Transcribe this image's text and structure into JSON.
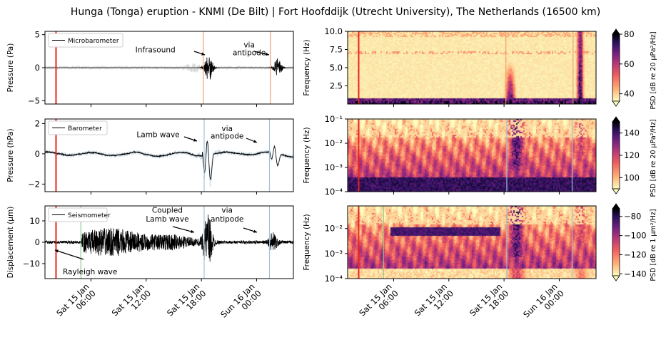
{
  "title": "Hunga (Tonga) eruption - KNMI (De Bilt) | Fort Hoofddijk (Utrecht University), The Netherlands (16500 km)",
  "colors": {
    "eruption_line": "#e8241f",
    "wave_line": "#9fc2da",
    "infrasound_line": "#f0a070",
    "rayleigh_line": "#8fc98f",
    "trace": "#000000",
    "trace_filtered": "#cfdde8",
    "microbaro_noise": "#d6d6d6",
    "colormap": [
      "#fcfdbf",
      "#feb078",
      "#f1605d",
      "#b73779",
      "#721f81",
      "#2c115f",
      "#000004"
    ]
  },
  "time_axis": {
    "ticks": [
      {
        "line1": "Sat 15 Jan",
        "line2": "06:00"
      },
      {
        "line1": "Sat 15 Jan",
        "line2": "12:00"
      },
      {
        "line1": "Sat 15 Jan",
        "line2": "18:00"
      },
      {
        "line1": "Sun 16 Jan",
        "line2": "00:00"
      }
    ],
    "range_hours": [
      1.0,
      28.0
    ],
    "tick_hours": [
      6,
      12,
      18,
      24
    ]
  },
  "chart_data": [
    {
      "type": "line",
      "panel": "microbarometer-timeseries",
      "ylabel": "Pressure (Pa)",
      "ylim": [
        -5.5,
        5.5
      ],
      "yticks": [
        "5",
        "0",
        "−5"
      ],
      "ytick_values": [
        5,
        0,
        -5
      ],
      "legend": "Microbarometer",
      "series": [
        {
          "name": "Microbarometer",
          "noise_amp": 0.25,
          "events": [
            {
              "hour": 18.8,
              "amp": 2.0
            },
            {
              "hour": 26.3,
              "amp": 1.4
            }
          ]
        }
      ],
      "vlines": [
        {
          "hour": 2.2,
          "kind": "eruption"
        },
        {
          "hour": 18.2,
          "kind": "infrasound"
        },
        {
          "hour": 25.5,
          "kind": "infrasound"
        }
      ],
      "annotations": [
        {
          "text": "Infrasound",
          "hour": 13.0,
          "value": 2.3
        },
        {
          "text": "via",
          "hour": 23.2,
          "value": 3.1
        },
        {
          "text": "antipode",
          "hour": 23.2,
          "value": 1.9
        }
      ]
    },
    {
      "type": "line",
      "panel": "barometer-timeseries",
      "ylabel": "Pressure (hPa)",
      "ylim": [
        -2.5,
        2.3
      ],
      "yticks": [
        "2",
        "0",
        "−2"
      ],
      "ytick_values": [
        2,
        0,
        -2
      ],
      "legend": "Barometer",
      "series": [
        {
          "name": "Barometer",
          "events": [
            {
              "hour": 18.5,
              "amp": 1.2,
              "min": -1.6
            },
            {
              "hour": 25.8,
              "amp": 0.5,
              "min": -0.9
            }
          ]
        }
      ],
      "vlines": [
        {
          "hour": 2.2,
          "kind": "eruption"
        },
        {
          "hour": 18.3,
          "kind": "wave"
        },
        {
          "hour": 25.4,
          "kind": "wave"
        }
      ],
      "annotations": [
        {
          "text": "Lamb wave",
          "hour": 13.3,
          "value": 1.1
        },
        {
          "text": "via",
          "hour": 20.8,
          "value": 1.5
        },
        {
          "text": "antipode",
          "hour": 20.8,
          "value": 1.0
        }
      ]
    },
    {
      "type": "line",
      "panel": "seismometer-timeseries",
      "ylabel": "Displacement (μm)",
      "ylim": [
        -17,
        17
      ],
      "yticks": [
        "10",
        "0",
        "−10"
      ],
      "ytick_values": [
        10,
        0,
        -10
      ],
      "legend": "Seismometer",
      "series": [
        {
          "name": "Seismometer",
          "rayleigh_amp": 6.0,
          "lamb_amp": 13.0
        }
      ],
      "vlines": [
        {
          "hour": 2.2,
          "kind": "eruption"
        },
        {
          "hour": 4.9,
          "kind": "rayleigh"
        },
        {
          "hour": 18.3,
          "kind": "wave"
        },
        {
          "hour": 25.4,
          "kind": "wave"
        }
      ],
      "annotations": [
        {
          "text": "Coupled",
          "hour": 14.3,
          "value": 13.8
        },
        {
          "text": "Lamb wave",
          "hour": 14.3,
          "value": 9.7
        },
        {
          "text": "via",
          "hour": 20.8,
          "value": 13.8
        },
        {
          "text": "antipode",
          "hour": 20.8,
          "value": 9.7
        },
        {
          "text": "Rayleigh wave",
          "hour": 5.9,
          "value": -15.0
        }
      ]
    },
    {
      "type": "heatmap",
      "panel": "microbarometer-spectrogram",
      "ylabel": "Frequency (Hz)",
      "ylim": [
        0,
        10
      ],
      "yticks": [
        "10.0",
        "7.5",
        "5.0",
        "2.5"
      ],
      "ytick_values": [
        10,
        7.5,
        5,
        2.5
      ],
      "colorbar_label": "PSD [dB re 20 μPa²/Hz]",
      "colorbar_ticks": [
        "80",
        "60",
        "40"
      ],
      "colorbar_range": [
        35,
        80
      ],
      "vlines": [
        {
          "hour": 2.2,
          "kind": "eruption"
        },
        {
          "hour": 18.2,
          "kind": "infrasound"
        },
        {
          "hour": 25.5,
          "kind": "infrasound"
        }
      ]
    },
    {
      "type": "heatmap",
      "panel": "barometer-spectrogram",
      "ylabel": "Frequency (Hz)",
      "yscale": "log",
      "ylim": [
        0.0001,
        0.1
      ],
      "yticks": [
        "10⁻¹",
        "10⁻²",
        "10⁻³",
        "10⁻⁴"
      ],
      "ytick_values": [
        0.1,
        0.01,
        0.001,
        0.0001
      ],
      "colorbar_label": "PSD [dB re 20 μPa²/Hz]",
      "colorbar_ticks": [
        "140",
        "120",
        "100"
      ],
      "colorbar_range": [
        90,
        150
      ],
      "vlines": [
        {
          "hour": 2.2,
          "kind": "eruption"
        },
        {
          "hour": 18.3,
          "kind": "wave"
        },
        {
          "hour": 25.4,
          "kind": "wave"
        }
      ]
    },
    {
      "type": "heatmap",
      "panel": "seismometer-spectrogram",
      "ylabel": "Frequency (Hz)",
      "yscale": "log",
      "ylim": [
        0.0001,
        0.08
      ],
      "yticks": [
        "10⁻²",
        "10⁻³",
        "10⁻⁴"
      ],
      "ytick_values": [
        0.01,
        0.001,
        0.0001
      ],
      "colorbar_label": "PSD [dB re 1 μm²/Hz]",
      "colorbar_ticks": [
        "−80",
        "−100",
        "−120",
        "−140"
      ],
      "colorbar_range": [
        -142,
        -72
      ],
      "vlines": [
        {
          "hour": 2.2,
          "kind": "eruption"
        },
        {
          "hour": 4.9,
          "kind": "rayleigh"
        },
        {
          "hour": 18.3,
          "kind": "wave"
        },
        {
          "hour": 25.4,
          "kind": "wave"
        }
      ]
    }
  ]
}
